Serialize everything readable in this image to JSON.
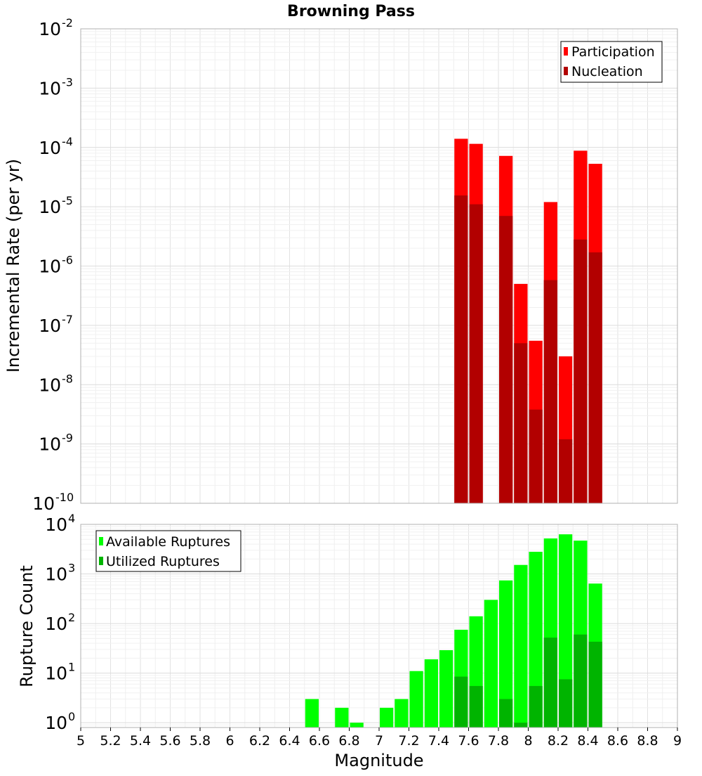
{
  "chart_data": [
    {
      "type": "bar",
      "title": "Browning Pass",
      "ylabel": "Incremental Rate (per yr)",
      "xlabel": "",
      "yscale": "log",
      "xlim": [
        5,
        9
      ],
      "ylim": [
        1e-10,
        0.01
      ],
      "grid": true,
      "legend_position": "top-right",
      "y_ticks": [
        {
          "base": "10",
          "exp": "-10"
        },
        {
          "base": "10",
          "exp": "-9"
        },
        {
          "base": "10",
          "exp": "-8"
        },
        {
          "base": "10",
          "exp": "-7"
        },
        {
          "base": "10",
          "exp": "-6"
        },
        {
          "base": "10",
          "exp": "-5"
        },
        {
          "base": "10",
          "exp": "-4"
        },
        {
          "base": "10",
          "exp": "-3"
        },
        {
          "base": "10",
          "exp": "-2"
        }
      ],
      "x": [
        7.55,
        7.65,
        7.85,
        7.95,
        8.05,
        8.15,
        8.25,
        8.35,
        8.45
      ],
      "series": [
        {
          "name": "Participation",
          "color": "#ff0000",
          "values": [
            0.00014,
            0.000115,
            7.2e-05,
            5e-07,
            5.5e-08,
            1.2e-05,
            3e-08,
            8.8e-05,
            5.3e-05
          ]
        },
        {
          "name": "Nucleation",
          "color": "#b20000",
          "values": [
            1.55e-05,
            1.1e-05,
            7e-06,
            5e-08,
            3.8e-09,
            5.8e-07,
            1.2e-09,
            2.8e-06,
            1.7e-06
          ]
        }
      ]
    },
    {
      "type": "bar",
      "title": "",
      "ylabel": "Rupture Count",
      "xlabel": "Magnitude",
      "yscale": "log",
      "xlim": [
        5,
        9
      ],
      "ylim": [
        0.8,
        10000
      ],
      "grid": true,
      "legend_position": "top-left",
      "y_ticks": [
        {
          "base": "10",
          "exp": "0"
        },
        {
          "base": "10",
          "exp": "1"
        },
        {
          "base": "10",
          "exp": "2"
        },
        {
          "base": "10",
          "exp": "3"
        },
        {
          "base": "10",
          "exp": "4"
        }
      ],
      "x_ticks": [
        "5",
        "5.2",
        "5.4",
        "5.6",
        "5.8",
        "6",
        "6.2",
        "6.4",
        "6.6",
        "6.8",
        "7",
        "7.2",
        "7.4",
        "7.6",
        "7.8",
        "8",
        "8.2",
        "8.4",
        "8.6",
        "8.8",
        "9"
      ],
      "x": [
        6.55,
        6.75,
        6.85,
        7.05,
        7.15,
        7.25,
        7.35,
        7.45,
        7.55,
        7.65,
        7.75,
        7.85,
        7.95,
        8.05,
        8.15,
        8.25,
        8.35,
        8.45
      ],
      "series": [
        {
          "name": "Available Ruptures",
          "color": "#00ff00",
          "values": [
            3,
            2,
            1,
            2,
            3,
            11,
            19,
            29,
            75,
            140,
            300,
            740,
            1520,
            2800,
            5200,
            6300,
            4700,
            640
          ]
        },
        {
          "name": "Utilized Ruptures",
          "color": "#00b400",
          "values": [
            null,
            null,
            null,
            null,
            null,
            null,
            null,
            null,
            8.5,
            5.5,
            null,
            3,
            1,
            5.5,
            52,
            7.5,
            60,
            43
          ]
        }
      ]
    }
  ]
}
